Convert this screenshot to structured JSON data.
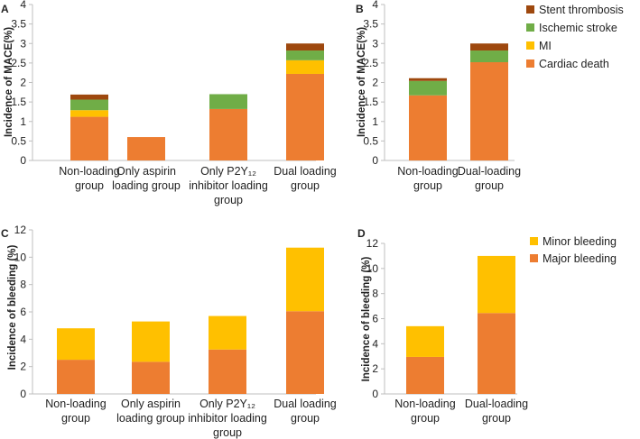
{
  "colors": {
    "cardiac_death": "#ed7d31",
    "mi": "#ffc000",
    "ischemic_stroke": "#70ad47",
    "stent_thrombosis": "#9e480e",
    "major_bleeding": "#ed7d31",
    "minor_bleeding": "#ffc000",
    "axis": "#bfbfbf"
  },
  "chart_data": [
    {
      "panel": "A",
      "type": "bar",
      "stacked": true,
      "ylabel": "Incidence of MACE(%)",
      "ylim": [
        0,
        4
      ],
      "yticks": [
        "0",
        "0.5",
        "1",
        "1.5",
        "2",
        "2.5",
        "3",
        "3.5",
        "4"
      ],
      "categories": [
        [
          "Non-loading",
          "group"
        ],
        [
          "Only aspirin",
          "loading group"
        ],
        [
          "Only P2Y₁₂",
          "inhibitor loading",
          "group"
        ],
        [
          "Dual loading",
          "group"
        ]
      ],
      "series": [
        {
          "name": "Cardiac death",
          "color_key": "cardiac_death",
          "values": [
            1.12,
            0.6,
            1.32,
            2.22
          ]
        },
        {
          "name": "MI",
          "color_key": "mi",
          "values": [
            0.17,
            0,
            0,
            0.35
          ]
        },
        {
          "name": "Ischemic stroke",
          "color_key": "ischemic_stroke",
          "values": [
            0.27,
            0,
            0.38,
            0.25
          ]
        },
        {
          "name": "Stent thrombosis",
          "color_key": "stent_thrombosis",
          "values": [
            0.13,
            0,
            0,
            0.18
          ]
        }
      ]
    },
    {
      "panel": "B",
      "type": "bar",
      "stacked": true,
      "ylabel": "Incidence of MACE(%)",
      "ylim": [
        0,
        4
      ],
      "yticks": [
        "0",
        "0.5",
        "1",
        "1.5",
        "2",
        "2.5",
        "3",
        "3.5",
        "4"
      ],
      "categories": [
        [
          "Non-loading",
          "group"
        ],
        [
          "Dual-loading",
          "group"
        ]
      ],
      "series": [
        {
          "name": "Cardiac death",
          "color_key": "cardiac_death",
          "values": [
            1.67,
            2.52
          ]
        },
        {
          "name": "MI",
          "color_key": "mi",
          "values": [
            0,
            0
          ]
        },
        {
          "name": "Ischemic stroke",
          "color_key": "ischemic_stroke",
          "values": [
            0.37,
            0.3
          ]
        },
        {
          "name": "Stent thrombosis",
          "color_key": "stent_thrombosis",
          "values": [
            0.07,
            0.18
          ]
        }
      ],
      "legend": [
        "Stent thrombosis",
        "Ischemic stroke",
        "MI",
        "Cardiac death"
      ]
    },
    {
      "panel": "C",
      "type": "bar",
      "stacked": true,
      "ylabel": "Incidence of bleeding (%)",
      "ylim": [
        0,
        12
      ],
      "yticks": [
        "0",
        "2",
        "4",
        "6",
        "8",
        "10",
        "12"
      ],
      "categories": [
        [
          "Non-loading",
          "group"
        ],
        [
          "Only aspirin",
          "loading group"
        ],
        [
          "Only P2Y₁₂",
          "inhibitor loading",
          "group"
        ],
        [
          "Dual loading",
          "group"
        ]
      ],
      "series": [
        {
          "name": "Major bleeding",
          "color_key": "major_bleeding",
          "values": [
            2.5,
            2.35,
            3.25,
            6.05
          ]
        },
        {
          "name": "Minor bleeding",
          "color_key": "minor_bleeding",
          "values": [
            2.3,
            2.95,
            2.45,
            4.65
          ]
        }
      ]
    },
    {
      "panel": "D",
      "type": "bar",
      "stacked": true,
      "ylabel": "Incidence of bleeding (%)",
      "ylim": [
        0,
        12
      ],
      "yticks": [
        "0",
        "2",
        "4",
        "6",
        "8",
        "10",
        "12"
      ],
      "categories": [
        [
          "Non-loading",
          "group"
        ],
        [
          "Dual-loading",
          "group"
        ]
      ],
      "series": [
        {
          "name": "Major bleeding",
          "color_key": "major_bleeding",
          "values": [
            2.95,
            6.45
          ]
        },
        {
          "name": "Minor bleeding",
          "color_key": "minor_bleeding",
          "values": [
            2.45,
            4.55
          ]
        }
      ],
      "legend": [
        "Minor bleeding",
        "Major bleeding"
      ]
    }
  ]
}
